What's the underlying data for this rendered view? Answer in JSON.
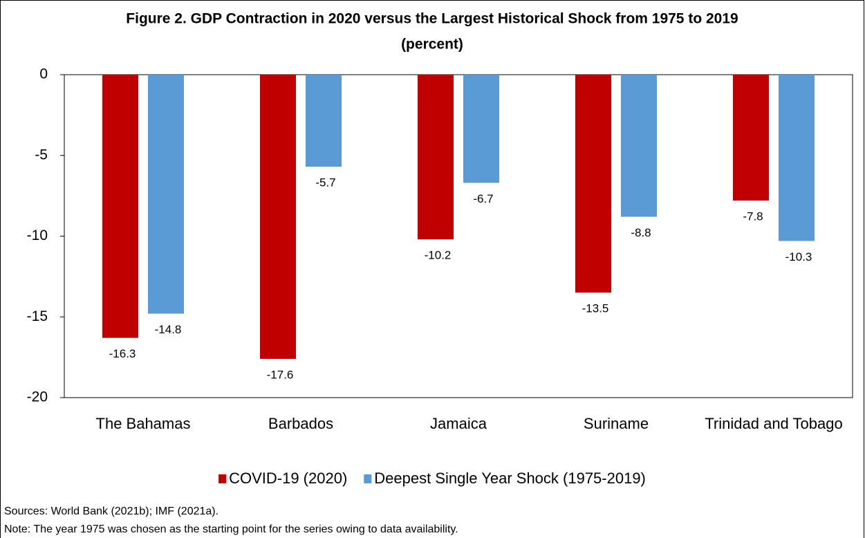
{
  "chart_data": {
    "type": "bar",
    "title": "Figure 2. GDP Contraction in 2020 versus the Largest Historical Shock from 1975 to 2019",
    "subtitle": "(percent)",
    "categories": [
      "The Bahamas",
      "Barbados",
      "Jamaica",
      "Suriname",
      "Trinidad and Tobago"
    ],
    "series": [
      {
        "name": "COVID-19 (2020)",
        "color": "#c00000",
        "values": [
          -16.3,
          -17.6,
          -10.2,
          -13.5,
          -7.8
        ]
      },
      {
        "name": "Deepest Single Year Shock (1975-2019)",
        "color": "#5b9bd5",
        "values": [
          -14.8,
          -5.7,
          -6.7,
          -8.8,
          -10.3
        ]
      }
    ],
    "ylim": [
      -20,
      0
    ],
    "yticks": [
      0,
      -5,
      -10,
      -15,
      -20
    ],
    "grid": false,
    "legend": "bottom",
    "notes": [
      "Sources: World Bank (2021b); IMF (2021a).",
      "Note: The year 1975 was chosen as the starting point for the series owing to data availability."
    ]
  }
}
